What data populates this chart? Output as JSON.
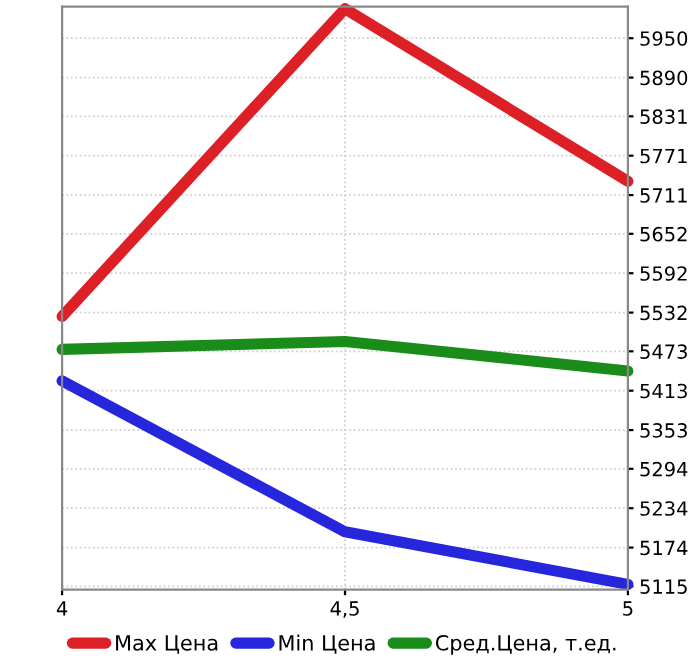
{
  "chart_data": {
    "type": "line",
    "x": [
      4,
      4.5,
      5
    ],
    "series": [
      {
        "name": "Max Цена",
        "color": "#dd1f26",
        "values": [
          5526,
          5995,
          5732
        ]
      },
      {
        "name": "Min Цена",
        "color": "#2626dd",
        "values": [
          5428,
          5198,
          5118
        ]
      },
      {
        "name": "Сред.Цена, т.ед.",
        "color": "#1a8c1a",
        "values": [
          5476,
          5488,
          5443
        ]
      }
    ],
    "xlim": [
      4,
      5
    ],
    "xticks": [
      4,
      {
        "value": 4.5,
        "label": "4,5"
      },
      5
    ],
    "ylim": [
      5110,
      5998
    ],
    "yticks": [
      5115,
      5174,
      5234,
      5294,
      5353,
      5413,
      5473,
      5532,
      5592,
      5652,
      5711,
      5771,
      5831,
      5890,
      5950
    ],
    "grid": true,
    "legend": "bottom",
    "marker": "none",
    "line_style": "solid"
  }
}
